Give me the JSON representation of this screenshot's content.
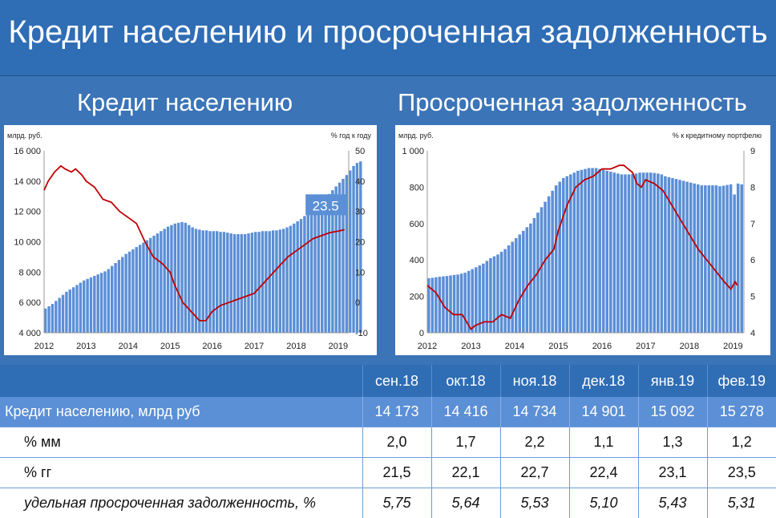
{
  "title": "Кредит населению и просроченная задолженность",
  "left_subtitle": "Кредит населению",
  "right_subtitle": "Просроченная задолженность",
  "colors": {
    "bar": "#5b8fd6",
    "line": "#c00000",
    "header": "#2f6db5",
    "row_main": "#5b8fd6"
  },
  "chart_data": [
    {
      "type": "bar",
      "left_unit": "млрд. руб.",
      "right_unit": "% год к году",
      "x_ticks": [
        "2012",
        "2013",
        "2014",
        "2015",
        "2016",
        "2017",
        "2018",
        "2019"
      ],
      "ylim": [
        4000,
        16000
      ],
      "y_ticks": [
        "16 000",
        "14 000",
        "12 000",
        "10 000",
        "8 000",
        "6 000",
        "4 000"
      ],
      "y2lim": [
        -10,
        50
      ],
      "y2_ticks": [
        "50",
        "40",
        "30",
        "20",
        "10",
        "0",
        "-10"
      ],
      "annotation": "23.5",
      "series": [
        {
          "type": "bar",
          "x_start": 2012.0,
          "step": 0.08333,
          "values": [
            5600,
            5750,
            5900,
            6100,
            6300,
            6500,
            6700,
            6850,
            7000,
            7150,
            7300,
            7450,
            7550,
            7650,
            7750,
            7850,
            7950,
            8050,
            8200,
            8400,
            8600,
            8800,
            9000,
            9200,
            9350,
            9500,
            9650,
            9800,
            9950,
            10100,
            10250,
            10400,
            10550,
            10700,
            10850,
            11000,
            11100,
            11200,
            11250,
            11300,
            11250,
            11100,
            10950,
            10850,
            10800,
            10750,
            10750,
            10700,
            10700,
            10700,
            10650,
            10650,
            10600,
            10550,
            10500,
            10500,
            10500,
            10500,
            10550,
            10600,
            10650,
            10650,
            10700,
            10700,
            10700,
            10750,
            10750,
            10800,
            10850,
            10950,
            11050,
            11200,
            11350,
            11500,
            11700,
            11900,
            12100,
            12300,
            12500,
            12700,
            12900,
            13150,
            13400,
            13650,
            13900,
            14150,
            14400,
            14700,
            15000,
            15200,
            15300
          ]
        },
        {
          "type": "line",
          "axis": "right",
          "x": [
            2012.0,
            2012.1,
            2012.25,
            2012.4,
            2012.5,
            2012.65,
            2012.75,
            2012.9,
            2013.0,
            2013.2,
            2013.4,
            2013.6,
            2013.8,
            2014.0,
            2014.2,
            2014.4,
            2014.6,
            2014.8,
            2015.0,
            2015.1,
            2015.3,
            2015.5,
            2015.7,
            2015.85,
            2016.0,
            2016.1,
            2016.2,
            2016.4,
            2016.6,
            2016.8,
            2017.0,
            2017.2,
            2017.4,
            2017.6,
            2017.8,
            2018.0,
            2018.2,
            2018.4,
            2018.6,
            2018.8,
            2019.0,
            2019.15
          ],
          "values": [
            37,
            40,
            43,
            45,
            44,
            43,
            44,
            42,
            40,
            38,
            34,
            33,
            30,
            28,
            26,
            20,
            15,
            13,
            10,
            6,
            0,
            -3,
            -6,
            -6,
            -3,
            -2,
            -1,
            0,
            1,
            2,
            3,
            6,
            9,
            12,
            15,
            17,
            19,
            21,
            22,
            23,
            23.5,
            24
          ]
        }
      ]
    },
    {
      "type": "bar",
      "left_unit": "млрд. руб.",
      "right_unit": "% к кредитному портфелю",
      "x_ticks": [
        "2012",
        "2013",
        "2014",
        "2015",
        "2016",
        "2017",
        "2018",
        "2019"
      ],
      "ylim": [
        0,
        1000
      ],
      "y_ticks": [
        "1 000",
        "800",
        "600",
        "400",
        "200",
        "0"
      ],
      "y2lim": [
        4,
        9
      ],
      "y2_ticks": [
        "9",
        "8",
        "7",
        "6",
        "5",
        "4"
      ],
      "series": [
        {
          "type": "bar",
          "x_start": 2012.0,
          "step": 0.08333,
          "values": [
            300,
            302,
            305,
            308,
            310,
            312,
            315,
            318,
            320,
            325,
            330,
            340,
            350,
            360,
            370,
            380,
            395,
            410,
            420,
            430,
            445,
            460,
            480,
            500,
            520,
            540,
            560,
            580,
            600,
            630,
            660,
            690,
            720,
            750,
            780,
            810,
            830,
            850,
            860,
            870,
            880,
            890,
            895,
            900,
            905,
            905,
            905,
            900,
            895,
            890,
            885,
            880,
            875,
            870,
            870,
            870,
            872,
            875,
            880,
            880,
            880,
            880,
            878,
            875,
            870,
            860,
            855,
            850,
            845,
            840,
            835,
            830,
            825,
            820,
            815,
            810,
            810,
            810,
            810,
            810,
            805,
            808,
            812,
            815,
            760,
            820,
            815
          ]
        },
        {
          "type": "line",
          "axis": "right",
          "x": [
            2012.0,
            2012.2,
            2012.4,
            2012.6,
            2012.8,
            2013.0,
            2013.1,
            2013.3,
            2013.5,
            2013.7,
            2013.9,
            2014.1,
            2014.3,
            2014.5,
            2014.7,
            2014.9,
            2015.0,
            2015.2,
            2015.4,
            2015.6,
            2015.8,
            2016.0,
            2016.2,
            2016.4,
            2016.5,
            2016.6,
            2016.7,
            2016.8,
            2016.9,
            2017.0,
            2017.2,
            2017.4,
            2017.6,
            2017.8,
            2018.0,
            2018.2,
            2018.4,
            2018.6,
            2018.8,
            2018.95,
            2019.0,
            2019.05,
            2019.1
          ],
          "values": [
            5.3,
            5.1,
            4.7,
            4.5,
            4.5,
            4.1,
            4.2,
            4.3,
            4.3,
            4.5,
            4.4,
            4.9,
            5.3,
            5.6,
            6.0,
            6.3,
            6.8,
            7.5,
            8.0,
            8.2,
            8.3,
            8.5,
            8.5,
            8.6,
            8.6,
            8.5,
            8.4,
            8.1,
            8.0,
            8.2,
            8.1,
            7.9,
            7.5,
            7.1,
            6.7,
            6.3,
            6.0,
            5.7,
            5.4,
            5.2,
            5.3,
            5.4,
            5.3
          ]
        }
      ]
    }
  ],
  "table": {
    "columns": [
      "сен.18",
      "окт.18",
      "ноя.18",
      "дек.18",
      "янв.19",
      "фев.19"
    ],
    "rows": [
      {
        "label": "Кредит населению, млрд руб",
        "values": [
          "14 173",
          "14 416",
          "14 734",
          "14 901",
          "15 092",
          "15 278"
        ]
      },
      {
        "label": "% мм",
        "values": [
          "2,0",
          "1,7",
          "2,2",
          "1,1",
          "1,3",
          "1,2"
        ]
      },
      {
        "label": "% гг",
        "values": [
          "21,5",
          "22,1",
          "22,7",
          "22,4",
          "23,1",
          "23,5"
        ]
      },
      {
        "label": "удельная просроченная задолженность, %",
        "values": [
          "5,75",
          "5,64",
          "5,53",
          "5,10",
          "5,43",
          "5,31"
        ]
      }
    ]
  }
}
